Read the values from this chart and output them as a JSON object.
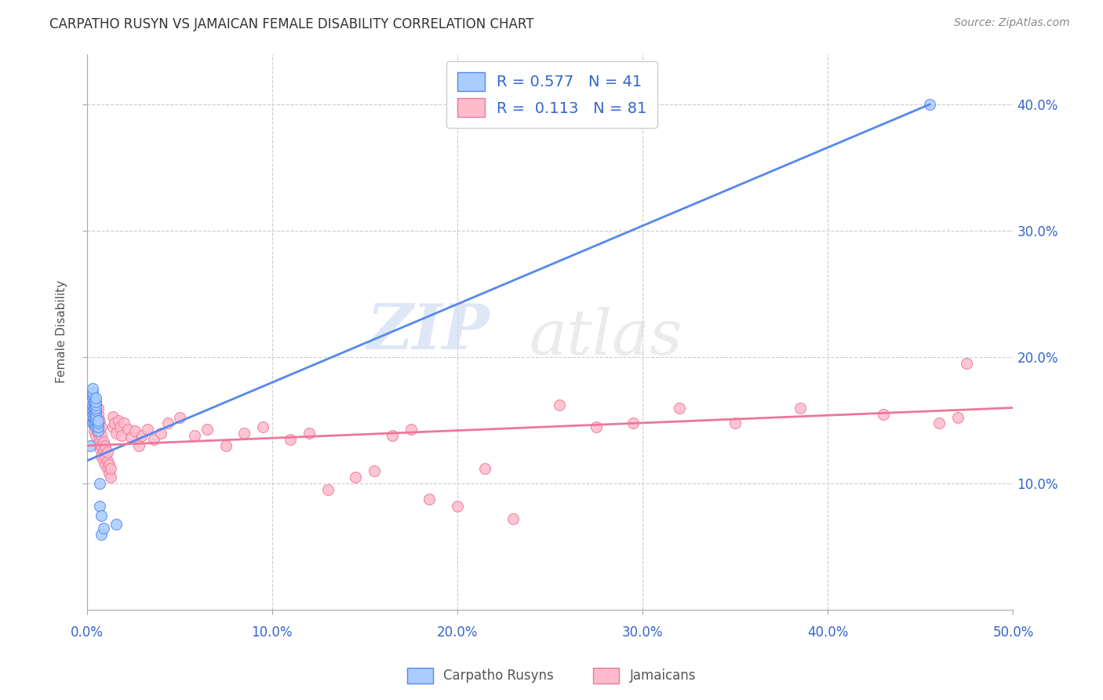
{
  "title": "CARPATHO RUSYN VS JAMAICAN FEMALE DISABILITY CORRELATION CHART",
  "source": "Source: ZipAtlas.com",
  "ylabel": "Female Disability",
  "xlim": [
    0.0,
    0.5
  ],
  "ylim": [
    0.0,
    0.44
  ],
  "xticks": [
    0.0,
    0.1,
    0.2,
    0.3,
    0.4,
    0.5
  ],
  "xtick_labels": [
    "0.0%",
    "10.0%",
    "20.0%",
    "30.0%",
    "40.0%",
    "50.0%"
  ],
  "yticks": [
    0.1,
    0.2,
    0.3,
    0.4
  ],
  "ytick_labels": [
    "10.0%",
    "20.0%",
    "30.0%",
    "40.0%"
  ],
  "grid_color": "#cccccc",
  "background_color": "#ffffff",
  "blue_color": "#5588ee",
  "blue_fill": "#aaccff",
  "pink_color": "#ee7799",
  "pink_fill": "#ffbbcc",
  "legend_r_blue": "0.577",
  "legend_n_blue": "41",
  "legend_r_pink": "0.113",
  "legend_n_pink": "81",
  "watermark_zip": "ZIP",
  "watermark_atlas": "atlas",
  "legend_label_blue": "Carpatho Rusyns",
  "legend_label_pink": "Jamaicans",
  "blue_scatter_x": [
    0.002,
    0.002,
    0.002,
    0.003,
    0.003,
    0.003,
    0.003,
    0.003,
    0.003,
    0.003,
    0.003,
    0.004,
    0.004,
    0.004,
    0.004,
    0.004,
    0.004,
    0.004,
    0.004,
    0.004,
    0.005,
    0.005,
    0.005,
    0.005,
    0.005,
    0.005,
    0.005,
    0.005,
    0.005,
    0.005,
    0.006,
    0.006,
    0.006,
    0.006,
    0.007,
    0.007,
    0.008,
    0.008,
    0.009,
    0.016,
    0.455
  ],
  "blue_scatter_y": [
    0.13,
    0.155,
    0.165,
    0.148,
    0.155,
    0.158,
    0.162,
    0.168,
    0.17,
    0.172,
    0.175,
    0.15,
    0.152,
    0.158,
    0.163,
    0.148,
    0.152,
    0.156,
    0.16,
    0.165,
    0.145,
    0.148,
    0.15,
    0.152,
    0.155,
    0.158,
    0.16,
    0.162,
    0.165,
    0.168,
    0.142,
    0.145,
    0.148,
    0.15,
    0.1,
    0.082,
    0.075,
    0.06,
    0.065,
    0.068,
    0.4
  ],
  "pink_scatter_x": [
    0.002,
    0.003,
    0.003,
    0.004,
    0.004,
    0.004,
    0.005,
    0.005,
    0.005,
    0.005,
    0.005,
    0.006,
    0.006,
    0.006,
    0.006,
    0.006,
    0.007,
    0.007,
    0.007,
    0.007,
    0.008,
    0.008,
    0.008,
    0.008,
    0.009,
    0.009,
    0.009,
    0.01,
    0.01,
    0.01,
    0.011,
    0.011,
    0.011,
    0.012,
    0.012,
    0.013,
    0.013,
    0.014,
    0.014,
    0.015,
    0.016,
    0.017,
    0.018,
    0.019,
    0.02,
    0.022,
    0.024,
    0.026,
    0.028,
    0.03,
    0.033,
    0.036,
    0.04,
    0.044,
    0.05,
    0.058,
    0.065,
    0.075,
    0.085,
    0.095,
    0.11,
    0.12,
    0.13,
    0.145,
    0.155,
    0.165,
    0.175,
    0.185,
    0.2,
    0.215,
    0.23,
    0.255,
    0.275,
    0.295,
    0.32,
    0.35,
    0.385,
    0.43,
    0.46,
    0.47,
    0.475
  ],
  "pink_scatter_y": [
    0.155,
    0.148,
    0.158,
    0.142,
    0.15,
    0.158,
    0.138,
    0.145,
    0.153,
    0.16,
    0.165,
    0.132,
    0.14,
    0.148,
    0.155,
    0.16,
    0.128,
    0.136,
    0.143,
    0.15,
    0.122,
    0.13,
    0.138,
    0.145,
    0.118,
    0.126,
    0.133,
    0.115,
    0.122,
    0.13,
    0.112,
    0.118,
    0.125,
    0.108,
    0.115,
    0.105,
    0.112,
    0.145,
    0.153,
    0.148,
    0.14,
    0.15,
    0.145,
    0.138,
    0.148,
    0.143,
    0.137,
    0.142,
    0.13,
    0.138,
    0.143,
    0.135,
    0.14,
    0.148,
    0.152,
    0.138,
    0.143,
    0.13,
    0.14,
    0.145,
    0.135,
    0.14,
    0.095,
    0.105,
    0.11,
    0.138,
    0.143,
    0.088,
    0.082,
    0.112,
    0.072,
    0.162,
    0.145,
    0.148,
    0.16,
    0.148,
    0.16,
    0.155,
    0.148,
    0.152,
    0.195
  ],
  "blue_line_x_start": 0.0,
  "blue_line_x_end": 0.455,
  "blue_line_y_start": 0.118,
  "blue_line_y_end": 0.4,
  "pink_line_x_start": 0.0,
  "pink_line_x_end": 0.5,
  "pink_line_y_start": 0.13,
  "pink_line_y_end": 0.16
}
